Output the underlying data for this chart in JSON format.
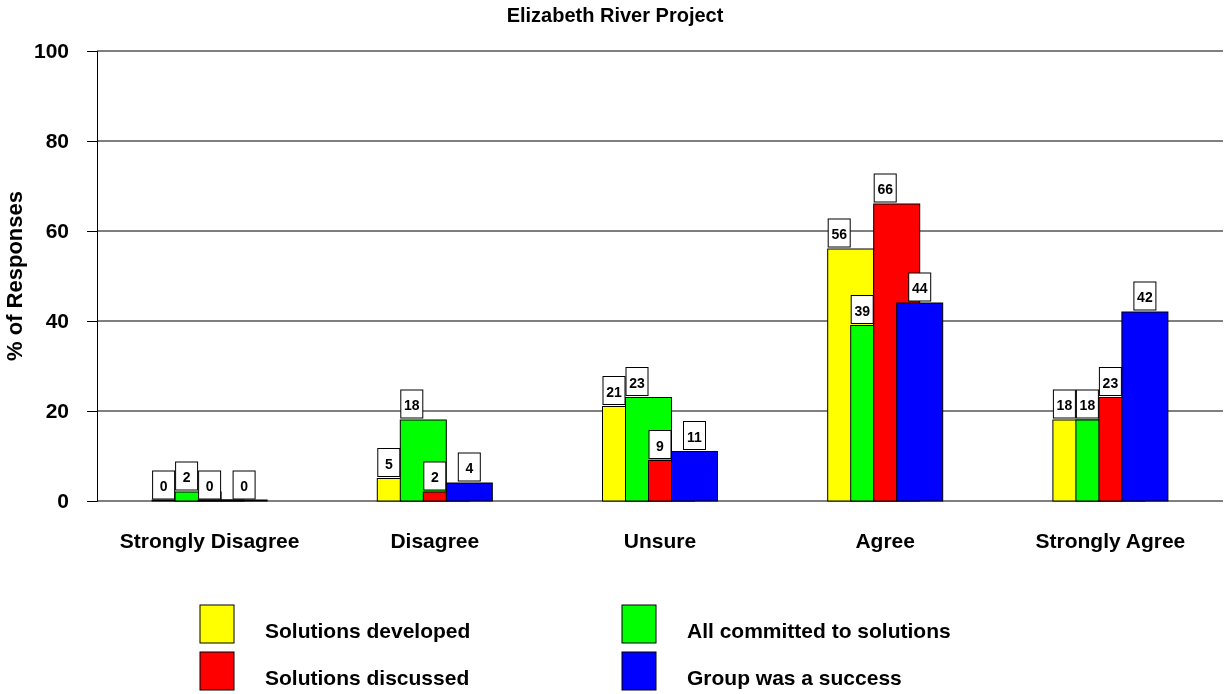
{
  "chart_data": {
    "type": "bar",
    "title": "Elizabeth River Project",
    "ylabel": "% of Responses",
    "categories": [
      "Strongly Disagree",
      "Disagree",
      "Unsure",
      "Agree",
      "Strongly Agree"
    ],
    "series": [
      {
        "name": "Solutions developed",
        "color": "#ffff00",
        "values": [
          0,
          5,
          21,
          56,
          18
        ]
      },
      {
        "name": "All committed to solutions",
        "color": "#00ff00",
        "values": [
          2,
          18,
          23,
          39,
          18
        ]
      },
      {
        "name": "Solutions discussed",
        "color": "#ff0000",
        "values": [
          0,
          2,
          9,
          66,
          23
        ]
      },
      {
        "name": "Group was a success",
        "color": "#0000ff",
        "values": [
          0,
          4,
          11,
          44,
          42
        ]
      }
    ],
    "ylim": [
      0,
      100
    ],
    "yticks": [
      0,
      20,
      40,
      60,
      80,
      100
    ],
    "grid": "y",
    "legend": "bottom",
    "data_labels": true
  }
}
